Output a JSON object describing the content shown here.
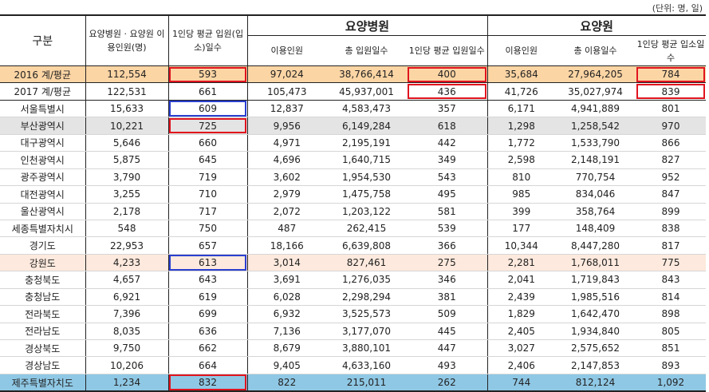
{
  "unit_note": "(단위: 명, 일)",
  "headers": {
    "category": "구분",
    "combined_users": "요양병원 · 요양원 이용인원(명)",
    "combined_avg": "1인당 평균 입원(입소)일수",
    "hospital_group": "요양병원",
    "facility_group": "요양원",
    "hosp_users": "이용인원",
    "hosp_total_days": "총 입원일수",
    "hosp_avg": "1인당 평균 입원일수",
    "fac_users": "이용인원",
    "fac_total_days": "총 이용일수",
    "fac_avg": "1인당 평균 입소일수"
  },
  "rows": [
    {
      "label": "2016 계/평균",
      "combined_users": "112,554",
      "combined_avg": "593",
      "hosp_users": "97,024",
      "hosp_days": "38,766,414",
      "hosp_avg": "400",
      "fac_users": "35,684",
      "fac_days": "27,964,205",
      "fac_avg": "784"
    },
    {
      "label": "2017 계/평균",
      "combined_users": "122,531",
      "combined_avg": "661",
      "hosp_users": "105,473",
      "hosp_days": "45,937,001",
      "hosp_avg": "436",
      "fac_users": "41,726",
      "fac_days": "35,027,974",
      "fac_avg": "839"
    },
    {
      "label": "서울특별시",
      "combined_users": "15,633",
      "combined_avg": "609",
      "hosp_users": "12,837",
      "hosp_days": "4,583,473",
      "hosp_avg": "357",
      "fac_users": "6,171",
      "fac_days": "4,941,889",
      "fac_avg": "801"
    },
    {
      "label": "부산광역시",
      "combined_users": "10,221",
      "combined_avg": "725",
      "hosp_users": "9,956",
      "hosp_days": "6,149,284",
      "hosp_avg": "618",
      "fac_users": "1,298",
      "fac_days": "1,258,542",
      "fac_avg": "970"
    },
    {
      "label": "대구광역시",
      "combined_users": "5,646",
      "combined_avg": "660",
      "hosp_users": "4,971",
      "hosp_days": "2,195,191",
      "hosp_avg": "442",
      "fac_users": "1,772",
      "fac_days": "1,533,790",
      "fac_avg": "866"
    },
    {
      "label": "인천광역시",
      "combined_users": "5,875",
      "combined_avg": "645",
      "hosp_users": "4,696",
      "hosp_days": "1,640,715",
      "hosp_avg": "349",
      "fac_users": "2,598",
      "fac_days": "2,148,191",
      "fac_avg": "827"
    },
    {
      "label": "광주광역시",
      "combined_users": "3,790",
      "combined_avg": "719",
      "hosp_users": "3,602",
      "hosp_days": "1,954,530",
      "hosp_avg": "543",
      "fac_users": "810",
      "fac_days": "770,754",
      "fac_avg": "952"
    },
    {
      "label": "대전광역시",
      "combined_users": "3,255",
      "combined_avg": "710",
      "hosp_users": "2,979",
      "hosp_days": "1,475,758",
      "hosp_avg": "495",
      "fac_users": "985",
      "fac_days": "834,046",
      "fac_avg": "847"
    },
    {
      "label": "울산광역시",
      "combined_users": "2,178",
      "combined_avg": "717",
      "hosp_users": "2,072",
      "hosp_days": "1,203,122",
      "hosp_avg": "581",
      "fac_users": "399",
      "fac_days": "358,764",
      "fac_avg": "899"
    },
    {
      "label": "세종특별자치시",
      "combined_users": "548",
      "combined_avg": "750",
      "hosp_users": "487",
      "hosp_days": "262,415",
      "hosp_avg": "539",
      "fac_users": "177",
      "fac_days": "148,409",
      "fac_avg": "838"
    },
    {
      "label": "경기도",
      "combined_users": "22,953",
      "combined_avg": "657",
      "hosp_users": "18,166",
      "hosp_days": "6,639,808",
      "hosp_avg": "366",
      "fac_users": "10,344",
      "fac_days": "8,447,280",
      "fac_avg": "817"
    },
    {
      "label": "강원도",
      "combined_users": "4,233",
      "combined_avg": "613",
      "hosp_users": "3,014",
      "hosp_days": "827,461",
      "hosp_avg": "275",
      "fac_users": "2,281",
      "fac_days": "1,768,011",
      "fac_avg": "775"
    },
    {
      "label": "충청북도",
      "combined_users": "4,657",
      "combined_avg": "643",
      "hosp_users": "3,691",
      "hosp_days": "1,276,035",
      "hosp_avg": "346",
      "fac_users": "2,041",
      "fac_days": "1,719,843",
      "fac_avg": "843"
    },
    {
      "label": "충청남도",
      "combined_users": "6,921",
      "combined_avg": "619",
      "hosp_users": "6,028",
      "hosp_days": "2,298,294",
      "hosp_avg": "381",
      "fac_users": "2,439",
      "fac_days": "1,985,516",
      "fac_avg": "814"
    },
    {
      "label": "전라북도",
      "combined_users": "7,396",
      "combined_avg": "699",
      "hosp_users": "6,932",
      "hosp_days": "3,525,573",
      "hosp_avg": "509",
      "fac_users": "1,829",
      "fac_days": "1,642,470",
      "fac_avg": "898"
    },
    {
      "label": "전라남도",
      "combined_users": "8,035",
      "combined_avg": "636",
      "hosp_users": "7,136",
      "hosp_days": "3,177,070",
      "hosp_avg": "445",
      "fac_users": "2,405",
      "fac_days": "1,934,840",
      "fac_avg": "805"
    },
    {
      "label": "경상북도",
      "combined_users": "9,750",
      "combined_avg": "662",
      "hosp_users": "8,679",
      "hosp_days": "3,880,101",
      "hosp_avg": "447",
      "fac_users": "3,027",
      "fac_days": "2,575,652",
      "fac_avg": "851"
    },
    {
      "label": "경상남도",
      "combined_users": "10,206",
      "combined_avg": "664",
      "hosp_users": "9,405",
      "hosp_days": "4,633,160",
      "hosp_avg": "493",
      "fac_users": "2,406",
      "fac_days": "2,147,853",
      "fac_avg": "893"
    },
    {
      "label": "제주특별자치도",
      "combined_users": "1,234",
      "combined_avg": "832",
      "hosp_users": "822",
      "hosp_days": "215,011",
      "hosp_avg": "262",
      "fac_users": "744",
      "fac_days": "812,124",
      "fac_avg": "1,092"
    }
  ]
}
